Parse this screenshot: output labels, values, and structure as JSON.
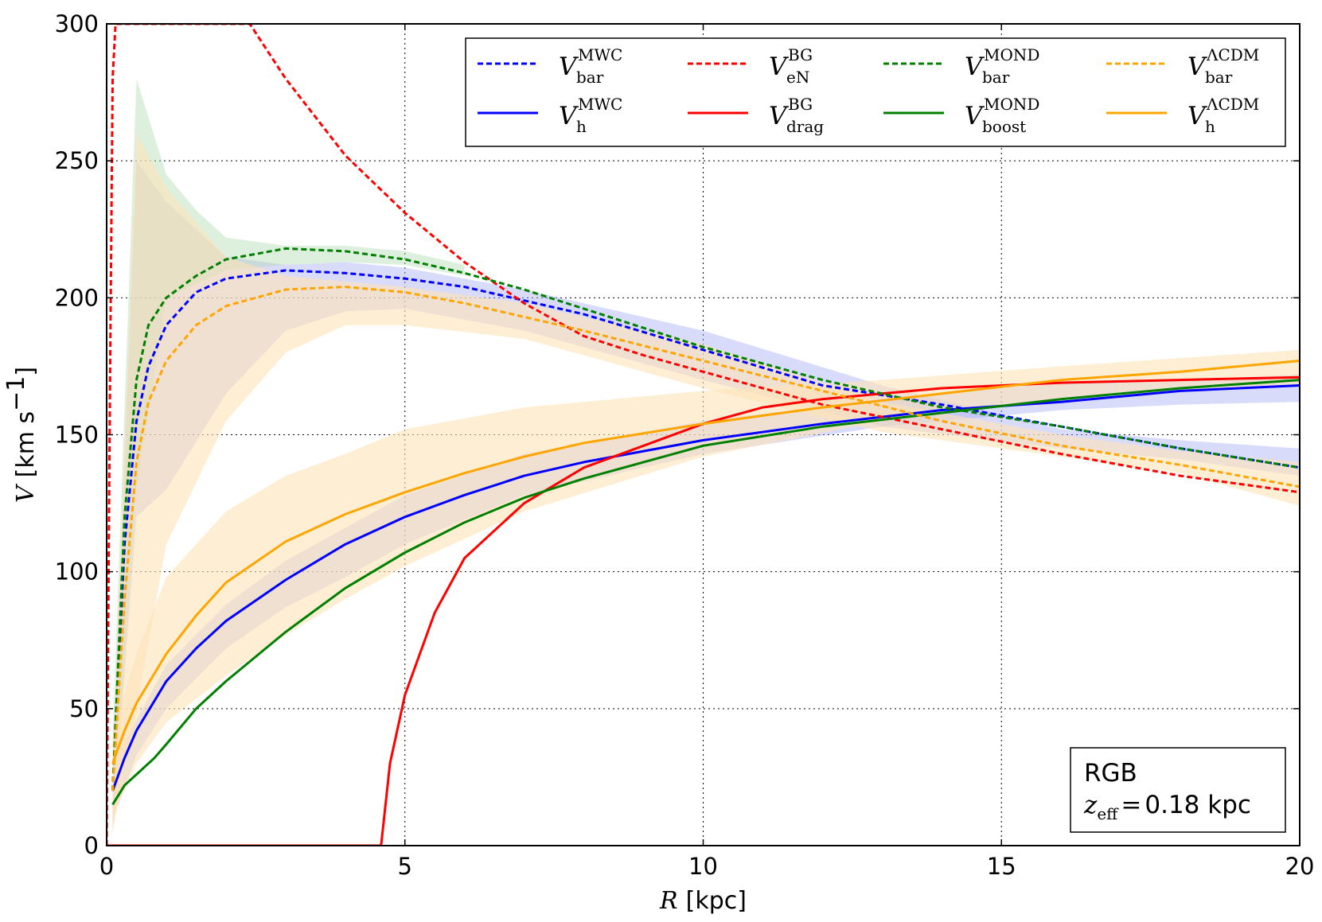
{
  "chart_data": {
    "type": "line",
    "xlabel": {
      "symbol": "R",
      "unit": "[kpc]"
    },
    "ylabel": {
      "symbol": "V",
      "unit": "[km s",
      "unit_exp": "−1",
      "unit_close": "]"
    },
    "xlim": [
      0,
      20
    ],
    "ylim": [
      0,
      300
    ],
    "xticks": [
      0,
      5,
      10,
      15,
      20
    ],
    "yticks": [
      0,
      50,
      100,
      150,
      200,
      250,
      300
    ],
    "grid": "dotted",
    "legend_position": "top-right",
    "annotation": {
      "tracer": "RGB",
      "z_symbol": "z",
      "z_sub": "eff",
      "z_eq": "=",
      "z_value": "0.18 kpc",
      "position": "bottom-right"
    },
    "bands": [
      {
        "name": "MWC bar band",
        "color": "#aab0f5",
        "opacity": 0.45,
        "x": [
          0.1,
          0.5,
          1,
          2,
          3,
          4,
          5,
          7,
          10,
          13,
          16,
          18,
          20
        ],
        "lower": [
          5,
          120,
          130,
          165,
          188,
          195,
          196,
          188,
          170,
          153,
          145,
          141,
          135
        ],
        "upper": [
          30,
          250,
          235,
          215,
          212,
          213,
          211,
          203,
          188,
          168,
          152,
          148,
          145
        ]
      },
      {
        "name": "MWC halo band",
        "color": "#aab0f5",
        "opacity": 0.45,
        "x": [
          0.1,
          0.5,
          1,
          2,
          3,
          4,
          5,
          7,
          10,
          13,
          16,
          18,
          20
        ],
        "lower": [
          10,
          33,
          50,
          72,
          87,
          98,
          110,
          128,
          143,
          153,
          159,
          161,
          162
        ],
        "upper": [
          30,
          46,
          66,
          88,
          104,
          116,
          128,
          143,
          155,
          163,
          169,
          170,
          172
        ]
      },
      {
        "name": "MOND bar band",
        "color": "#b4dcb4",
        "opacity": 0.45,
        "x": [
          0.1,
          0.5,
          1,
          1.5,
          2,
          3,
          4,
          5,
          6
        ],
        "lower": [
          5,
          130,
          200,
          205,
          210,
          212,
          213,
          212,
          208
        ],
        "upper": [
          40,
          280,
          245,
          232,
          222,
          219,
          219,
          217,
          212
        ]
      },
      {
        "name": "ΛCDM bar band",
        "color": "#fde2b8",
        "opacity": 0.6,
        "x": [
          0.1,
          0.5,
          1,
          2,
          3,
          4,
          5,
          7,
          10,
          13,
          16,
          18,
          20
        ],
        "lower": [
          5,
          50,
          110,
          155,
          180,
          190,
          190,
          185,
          167,
          151,
          142,
          136,
          124
        ],
        "upper": [
          30,
          260,
          240,
          215,
          208,
          206,
          204,
          198,
          183,
          162,
          150,
          144,
          140
        ]
      },
      {
        "name": "ΛCDM halo band",
        "color": "#fde2b8",
        "opacity": 0.6,
        "x": [
          0.1,
          0.5,
          1,
          2,
          3,
          4,
          5,
          7,
          10,
          13,
          16,
          18,
          20
        ],
        "lower": [
          10,
          30,
          45,
          62,
          77,
          90,
          102,
          122,
          142,
          155,
          163,
          166,
          168
        ],
        "upper": [
          40,
          70,
          98,
          122,
          135,
          143,
          152,
          160,
          166,
          170,
          175,
          178,
          181
        ]
      }
    ],
    "series": [
      {
        "name": "V",
        "sup": "MWC",
        "sub": "bar",
        "color": "#0000ff",
        "dash": "dashed",
        "x": [
          0.1,
          0.3,
          0.5,
          0.7,
          1,
          1.5,
          2,
          3,
          4,
          5,
          6,
          7,
          8,
          10,
          12,
          14,
          16,
          18,
          20
        ],
        "y": [
          20,
          110,
          155,
          175,
          190,
          202,
          207,
          210,
          209,
          207,
          204,
          199,
          194,
          181,
          168,
          161,
          153,
          145,
          138
        ]
      },
      {
        "name": "V",
        "sup": "MWC",
        "sub": "h",
        "color": "#0000ff",
        "dash": "solid",
        "x": [
          0.1,
          0.3,
          0.5,
          1,
          1.5,
          2,
          3,
          4,
          5,
          6,
          7,
          8,
          10,
          12,
          14,
          16,
          18,
          20
        ],
        "y": [
          20,
          32,
          42,
          60,
          72,
          82,
          97,
          110,
          120,
          128,
          135,
          140,
          148,
          154,
          159,
          162,
          166,
          168
        ]
      },
      {
        "name": "V",
        "sup": "BG",
        "sub": "eN",
        "color": "#ff0000",
        "dash": "dashed",
        "x": [
          0,
          0.05,
          0.1,
          0.15,
          2.4,
          3,
          4,
          5,
          6,
          7,
          8,
          9,
          10,
          12,
          14,
          16,
          18,
          20
        ],
        "y": [
          0,
          150,
          280,
          300,
          300,
          280,
          252,
          231,
          213,
          198,
          186,
          179,
          173,
          161,
          152,
          143,
          135,
          129
        ]
      },
      {
        "name": "V",
        "sup": "BG",
        "sub": "drag",
        "color": "#ff0000",
        "dash": "solid",
        "x": [
          0,
          4.6,
          4.75,
          5,
          5.5,
          6,
          7,
          8,
          9,
          10,
          11,
          12,
          13,
          14,
          16,
          18,
          20
        ],
        "y": [
          0,
          0,
          30,
          55,
          85,
          105,
          125,
          138,
          146,
          154,
          160,
          163,
          165,
          167,
          169,
          170,
          171
        ]
      },
      {
        "name": "V",
        "sup": "MOND",
        "sub": "bar",
        "color": "#008000",
        "dash": "dashed",
        "x": [
          0.1,
          0.3,
          0.5,
          0.7,
          1,
          1.5,
          2,
          3,
          4,
          5,
          6,
          7,
          8,
          10,
          12,
          14,
          16,
          18,
          20
        ],
        "y": [
          20,
          120,
          170,
          190,
          200,
          208,
          214,
          218,
          217,
          214,
          209,
          203,
          196,
          182,
          170,
          160,
          153,
          145,
          138
        ]
      },
      {
        "name": "V",
        "sup": "MOND",
        "sub": "boost",
        "color": "#008000",
        "dash": "solid",
        "x": [
          0.1,
          0.3,
          0.5,
          0.8,
          1,
          1.5,
          2,
          3,
          4,
          5,
          6,
          7,
          8,
          10,
          12,
          14,
          16,
          18,
          20
        ],
        "y": [
          15,
          22,
          26,
          32,
          37,
          50,
          60,
          78,
          94,
          107,
          118,
          127,
          134,
          146,
          153,
          158,
          163,
          167,
          170
        ]
      },
      {
        "name": "V",
        "sup": "ΛCDM",
        "sub": "bar",
        "color": "#ffa500",
        "dash": "dashed",
        "x": [
          0.1,
          0.3,
          0.5,
          0.7,
          1,
          1.5,
          2,
          3,
          4,
          5,
          6,
          7,
          8,
          10,
          12,
          14,
          16,
          18,
          20
        ],
        "y": [
          20,
          90,
          140,
          162,
          177,
          190,
          197,
          203,
          204,
          202,
          198,
          193,
          188,
          177,
          166,
          155,
          146,
          139,
          131
        ]
      },
      {
        "name": "V",
        "sup": "ΛCDM",
        "sub": "h",
        "color": "#ffa500",
        "dash": "solid",
        "x": [
          0.1,
          0.3,
          0.5,
          1,
          1.5,
          2,
          3,
          4,
          5,
          6,
          7,
          8,
          10,
          12,
          14,
          16,
          18,
          20
        ],
        "y": [
          30,
          42,
          52,
          70,
          84,
          96,
          111,
          121,
          129,
          136,
          142,
          147,
          154,
          160,
          165,
          170,
          173,
          177
        ]
      }
    ]
  }
}
